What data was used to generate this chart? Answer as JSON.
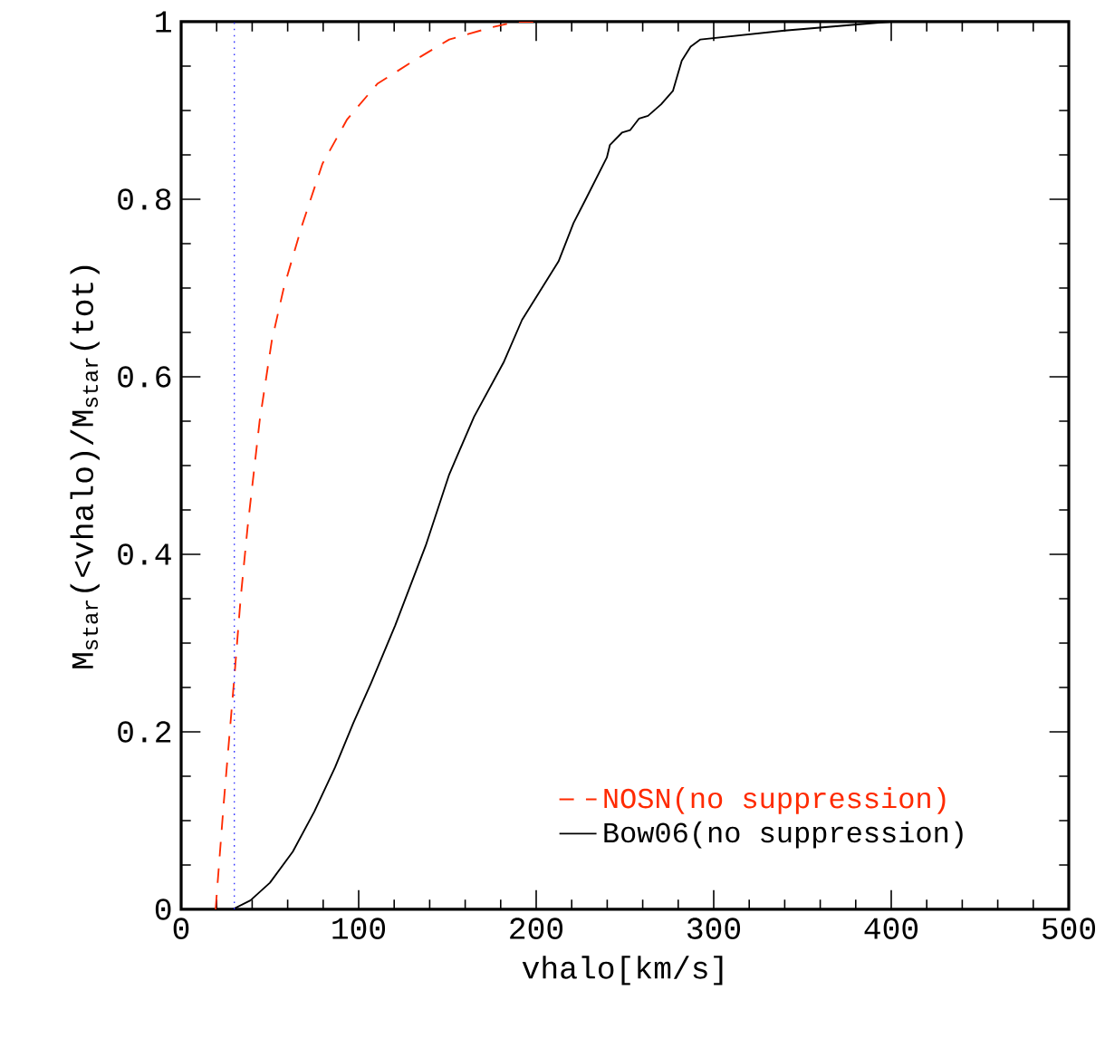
{
  "chart_data": {
    "type": "line",
    "xlabel": "vhalo[km/s]",
    "ylabel": "M$_{star}$(<vhalo)/M$_{star}$(tot)",
    "xlim": [
      0,
      500
    ],
    "ylim": [
      0,
      1
    ],
    "xticks": [
      0,
      100,
      200,
      300,
      400,
      500
    ],
    "yticks": [
      0,
      0.2,
      0.4,
      0.6,
      0.8,
      1
    ],
    "legend": "bottom right",
    "grid": false,
    "series": [
      {
        "name": "NOSN(no suppression)",
        "color": "#ff2a00",
        "line_style": "dashed",
        "x": [
          19.4,
          24,
          29.9,
          33.5,
          37.4,
          44.2,
          51,
          57.8,
          68,
          79.6,
          93.5,
          110.5,
          131,
          151,
          175.5,
          189,
          200
        ],
        "values": [
          0,
          0.12,
          0.26,
          0.35,
          0.43,
          0.55,
          0.64,
          0.7,
          0.77,
          0.84,
          0.89,
          0.93,
          0.956,
          0.98,
          0.994,
          1.0,
          1.0
        ]
      },
      {
        "name": "Bow06(no suppression)",
        "color": "#000000",
        "line_style": "solid",
        "x": [
          28.9,
          39,
          50,
          62.9,
          75,
          86.7,
          97,
          107,
          120.6,
          137.8,
          151,
          165,
          181.6,
          192,
          212.6,
          221,
          227.9,
          239.8,
          241.5,
          248.3,
          253,
          258,
          263,
          270.4,
          277,
          282,
          287,
          292.5,
          340,
          393,
          400
        ],
        "values": [
          0,
          0.01,
          0.03,
          0.065,
          0.11,
          0.16,
          0.21,
          0.255,
          0.32,
          0.41,
          0.49,
          0.555,
          0.616,
          0.664,
          0.73,
          0.773,
          0.8,
          0.847,
          0.861,
          0.875,
          0.878,
          0.891,
          0.894,
          0.907,
          0.922,
          0.956,
          0.972,
          0.98,
          0.99,
          0.999,
          1.0
        ]
      }
    ],
    "ref_lines": [
      {
        "axis": "x",
        "value": 30,
        "color": "#3333ff",
        "line_style": "dotted"
      }
    ]
  }
}
